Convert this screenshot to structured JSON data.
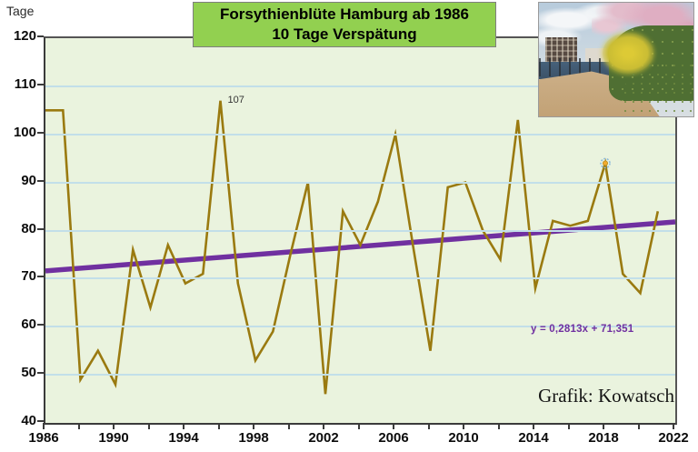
{
  "page": {
    "y_axis_unit_label": "Tage",
    "credit": "Grafik: Kowatsch"
  },
  "title": {
    "line1": "Forsythienblüte Hamburg ab 1986",
    "line2": "10 Tage Verspätung"
  },
  "chart_data": {
    "type": "line",
    "title": "Forsythienblüte Hamburg ab 1986 — 10 Tage Verspätung",
    "xlabel": "",
    "ylabel": "Tage",
    "ylim": [
      40,
      120
    ],
    "xlim": [
      1986,
      2022
    ],
    "grid": "horizontal-only",
    "legend": "none",
    "y_ticks": [
      40,
      50,
      60,
      70,
      80,
      90,
      100,
      110,
      120
    ],
    "x_minor_tick_step": 2,
    "x_tick_labels": [
      1986,
      1990,
      1994,
      1998,
      2002,
      2006,
      2010,
      2014,
      2018,
      2022
    ],
    "x": [
      1986,
      1987,
      1988,
      1989,
      1990,
      1991,
      1992,
      1993,
      1994,
      1995,
      1996,
      1997,
      1998,
      1999,
      2000,
      2001,
      2002,
      2003,
      2004,
      2005,
      2006,
      2007,
      2008,
      2009,
      2010,
      2011,
      2012,
      2013,
      2014,
      2015,
      2016,
      2017,
      2018,
      2019,
      2020,
      2021
    ],
    "values": [
      105,
      105,
      49,
      55,
      48,
      76,
      64,
      77,
      69,
      71,
      107,
      69,
      53,
      59,
      75,
      90,
      46,
      84,
      77,
      86,
      100,
      77,
      55,
      89,
      90,
      80,
      74,
      103,
      68,
      82,
      81,
      82,
      94,
      71,
      67,
      84
    ],
    "annotated_point": {
      "year": 1996,
      "value": 107,
      "label": "107"
    },
    "marked_point": {
      "year": 2018,
      "value": 94
    },
    "trend": {
      "label": "y = 0,2813x + 71,351",
      "slope": 0.2813,
      "intercept": 71.351,
      "x_start": 1986,
      "y_start": 71.6,
      "x_end": 2022,
      "y_end": 81.8
    },
    "colors": {
      "series": "#9a7a10",
      "trend": "#7030a0",
      "plot_bg": "#eaf3de",
      "gridline": "#c2dfe9",
      "title_bg": "#92d050",
      "marker_fill": "#f2aa2e",
      "marker_ring": "#8fbcdc"
    }
  }
}
